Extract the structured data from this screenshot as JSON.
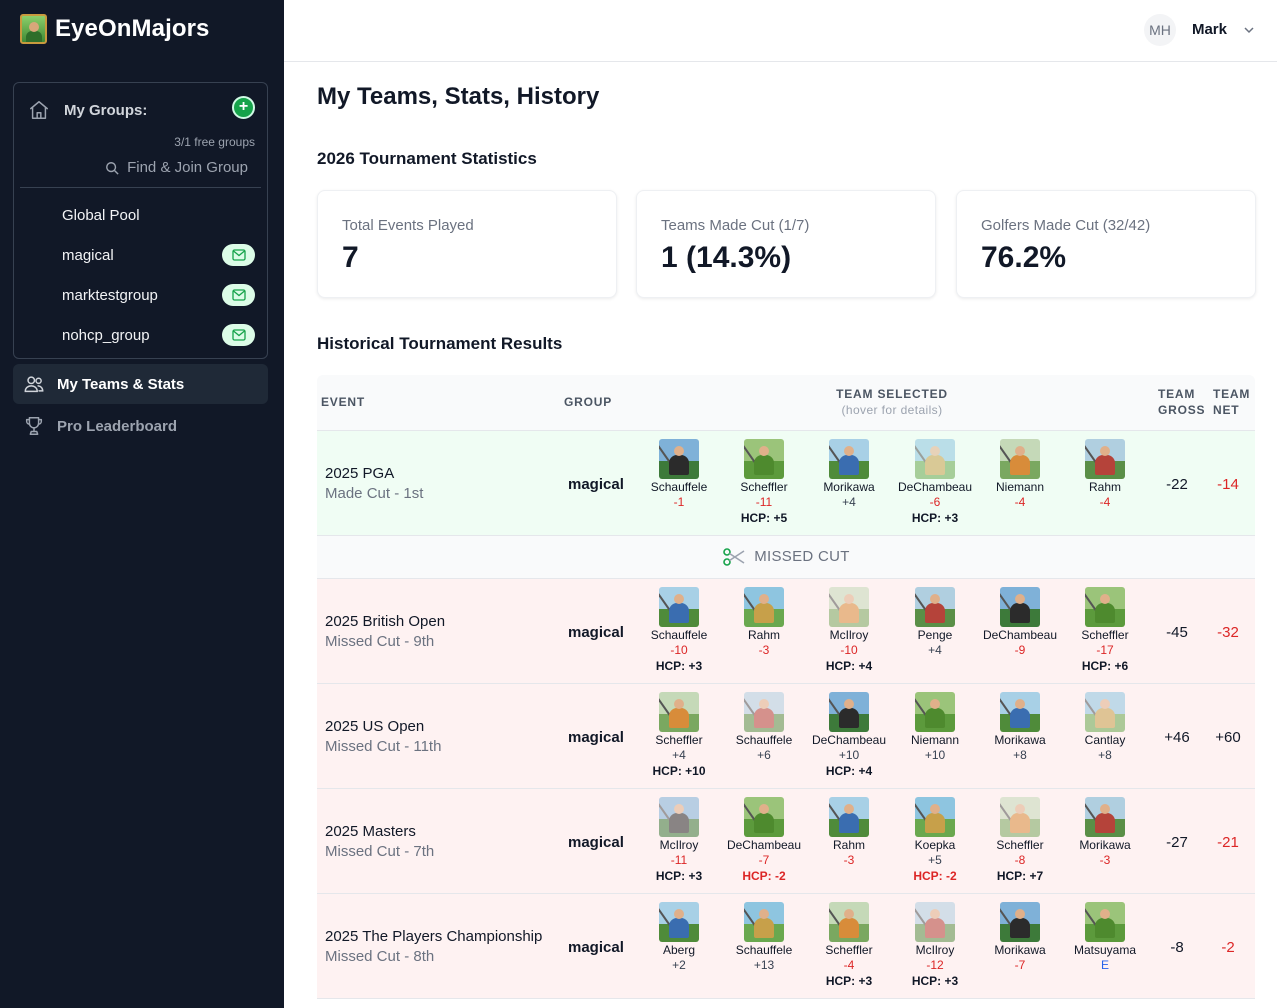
{
  "app": {
    "brand": "EyeOnMajors"
  },
  "sidebar": {
    "groups_label": "My Groups:",
    "free_groups": "3/1 free groups",
    "find_join": "Find & Join Group",
    "groups": [
      {
        "name": "Global Pool",
        "invite": false
      },
      {
        "name": "magical",
        "invite": true
      },
      {
        "name": "marktestgroup",
        "invite": true
      },
      {
        "name": "nohcp_group",
        "invite": true
      }
    ],
    "nav": [
      {
        "label": "My Teams & Stats",
        "active": true
      },
      {
        "label": "Pro Leaderboard",
        "active": false
      }
    ]
  },
  "user": {
    "initials": "MH",
    "name": "Mark"
  },
  "page": {
    "title": "My Teams, Stats, History",
    "stats_title": "2026 Tournament Statistics",
    "history_title": "Historical Tournament Results"
  },
  "stats": [
    {
      "label": "Total Events Played",
      "value": "7"
    },
    {
      "label": "Teams Made Cut (1/7)",
      "value": "1 (14.3%)"
    },
    {
      "label": "Golfers Made Cut (32/42)",
      "value": "76.2%"
    }
  ],
  "table": {
    "headers": {
      "event": "EVENT",
      "group": "GROUP",
      "team": "TEAM SELECTED",
      "team_hint": "(hover for details)",
      "gross_1": "TEAM",
      "gross_2": "GROSS",
      "net_1": "TEAM",
      "net_2": "NET"
    },
    "cut_label": "MISSED CUT",
    "rows": [
      {
        "event": "2025 PGA",
        "result": "Made Cut - 1st",
        "group": "magical",
        "gross": "-22",
        "net": "-14",
        "status": "made",
        "golfers": [
          {
            "name": "Schauffele",
            "score": "-1",
            "hcp": ""
          },
          {
            "name": "Scheffler",
            "score": "-11",
            "hcp": "HCP: +5"
          },
          {
            "name": "Morikawa",
            "score": "+4",
            "hcp": ""
          },
          {
            "name": "DeChambeau",
            "score": "-6",
            "hcp": "HCP: +3"
          },
          {
            "name": "Niemann",
            "score": "-4",
            "hcp": ""
          },
          {
            "name": "Rahm",
            "score": "-4",
            "hcp": ""
          }
        ]
      },
      {
        "event": "2025 British Open",
        "result": "Missed Cut - 9th",
        "group": "magical",
        "gross": "-45",
        "net": "-32",
        "status": "missed",
        "golfers": [
          {
            "name": "Schauffele",
            "score": "-10",
            "hcp": "HCP: +3"
          },
          {
            "name": "Rahm",
            "score": "-3",
            "hcp": ""
          },
          {
            "name": "McIlroy",
            "score": "-10",
            "hcp": "HCP: +4"
          },
          {
            "name": "Penge",
            "score": "+4",
            "hcp": ""
          },
          {
            "name": "DeChambeau",
            "score": "-9",
            "hcp": ""
          },
          {
            "name": "Scheffler",
            "score": "-17",
            "hcp": "HCP: +6"
          }
        ]
      },
      {
        "event": "2025 US Open",
        "result": "Missed Cut - 11th",
        "group": "magical",
        "gross": "+46",
        "net": "+60",
        "status": "missed",
        "golfers": [
          {
            "name": "Scheffler",
            "score": "+4",
            "hcp": "HCP: +10"
          },
          {
            "name": "Schauffele",
            "score": "+6",
            "hcp": ""
          },
          {
            "name": "DeChambeau",
            "score": "+10",
            "hcp": "HCP: +4"
          },
          {
            "name": "Niemann",
            "score": "+10",
            "hcp": ""
          },
          {
            "name": "Morikawa",
            "score": "+8",
            "hcp": ""
          },
          {
            "name": "Cantlay",
            "score": "+8",
            "hcp": ""
          }
        ]
      },
      {
        "event": "2025 Masters",
        "result": "Missed Cut - 7th",
        "group": "magical",
        "gross": "-27",
        "net": "-21",
        "status": "missed",
        "golfers": [
          {
            "name": "McIlroy",
            "score": "-11",
            "hcp": "HCP: +3"
          },
          {
            "name": "DeChambeau",
            "score": "-7",
            "hcp": "HCP: -2"
          },
          {
            "name": "Rahm",
            "score": "-3",
            "hcp": ""
          },
          {
            "name": "Koepka",
            "score": "+5",
            "hcp": "HCP: -2"
          },
          {
            "name": "Scheffler",
            "score": "-8",
            "hcp": "HCP: +7"
          },
          {
            "name": "Morikawa",
            "score": "-3",
            "hcp": ""
          }
        ]
      },
      {
        "event": "2025 The Players Championship",
        "result": "Missed Cut - 8th",
        "group": "magical",
        "gross": "-8",
        "net": "-2",
        "status": "missed",
        "golfers": [
          {
            "name": "Aberg",
            "score": "+2",
            "hcp": ""
          },
          {
            "name": "Schauffele",
            "score": "+13",
            "hcp": ""
          },
          {
            "name": "Scheffler",
            "score": "-4",
            "hcp": "HCP: +3"
          },
          {
            "name": "McIlroy",
            "score": "-12",
            "hcp": "HCP: +3"
          },
          {
            "name": "Morikawa",
            "score": "-7",
            "hcp": ""
          },
          {
            "name": "Matsuyama",
            "score": "E",
            "hcp": ""
          }
        ]
      }
    ]
  },
  "colors": {
    "sidebar_bg": "#111827",
    "made_row": "#f0fdf4",
    "missed_row": "#fef2f2",
    "negative": "#dc2626",
    "accent_green": "#16a34a"
  }
}
